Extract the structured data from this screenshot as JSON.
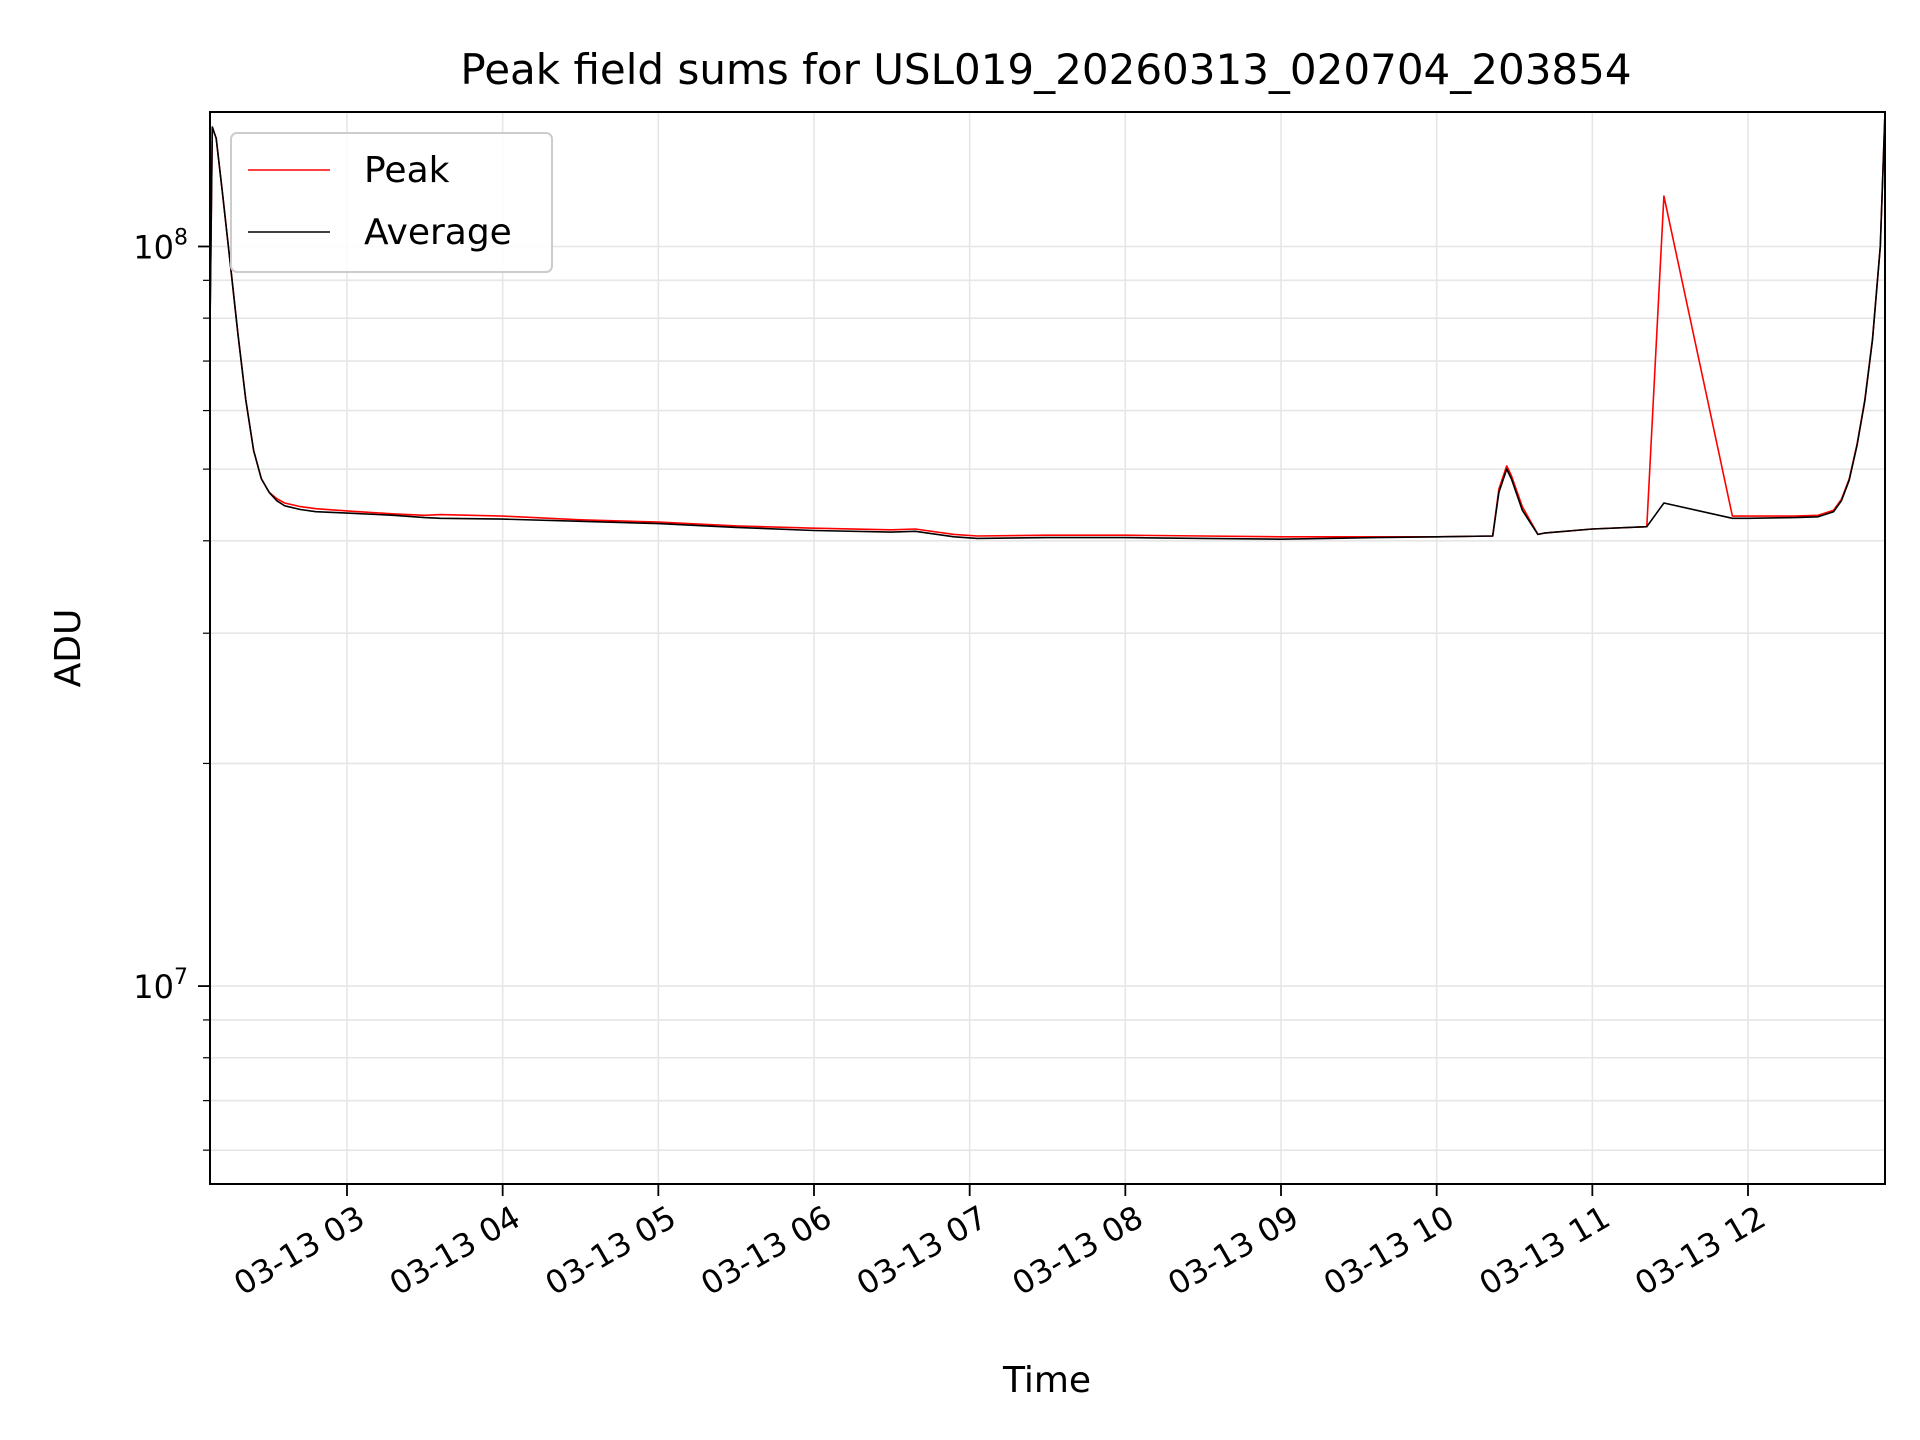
{
  "chart_data": {
    "type": "line",
    "title": "Peak field sums for USL019_20260313_020704_203854",
    "xlabel": "Time",
    "ylabel": "ADU",
    "yscale": "log",
    "ylim": [
      5400000,
      152000000
    ],
    "xlim_hours": [
      2.12,
      12.88
    ],
    "grid": true,
    "legend": {
      "position": "top-left",
      "entries": [
        "Peak",
        "Average"
      ]
    },
    "x_ticks": [
      {
        "hour": 3,
        "label": "03-13 03"
      },
      {
        "hour": 4,
        "label": "03-13 04"
      },
      {
        "hour": 5,
        "label": "03-13 05"
      },
      {
        "hour": 6,
        "label": "03-13 06"
      },
      {
        "hour": 7,
        "label": "03-13 07"
      },
      {
        "hour": 8,
        "label": "03-13 08"
      },
      {
        "hour": 9,
        "label": "03-13 09"
      },
      {
        "hour": 10,
        "label": "03-13 10"
      },
      {
        "hour": 11,
        "label": "03-13 11"
      },
      {
        "hour": 12,
        "label": "03-13 12"
      }
    ],
    "y_ticks": [
      {
        "value": 10000000,
        "base": "10",
        "exp": "7"
      },
      {
        "value": 100000000,
        "base": "10",
        "exp": "8"
      }
    ],
    "series": [
      {
        "name": "Peak",
        "color": "#ff0000",
        "x_hours": [
          2.12,
          2.135,
          2.16,
          2.2,
          2.25,
          2.3,
          2.35,
          2.4,
          2.45,
          2.5,
          2.55,
          2.6,
          2.7,
          2.8,
          3.0,
          3.3,
          3.5,
          3.6,
          4.0,
          4.5,
          5.0,
          5.5,
          6.0,
          6.5,
          6.65,
          6.9,
          7.05,
          7.5,
          8.0,
          8.5,
          9.0,
          9.3,
          9.6,
          10.0,
          10.36,
          10.4,
          10.45,
          10.48,
          10.55,
          10.65,
          10.7,
          11.0,
          11.35,
          11.46,
          11.9,
          12.0,
          12.3,
          12.45,
          12.55,
          12.6,
          12.65,
          12.7,
          12.75,
          12.8,
          12.85,
          12.88
        ],
        "values": [
          78000000,
          145000000,
          140000000,
          118000000,
          95000000,
          76000000,
          62000000,
          53000000,
          48500000,
          46500000,
          45600000,
          45000000,
          44500000,
          44200000,
          43900000,
          43500000,
          43300000,
          43400000,
          43200000,
          42700000,
          42400000,
          41900000,
          41600000,
          41400000,
          41500000,
          40800000,
          40600000,
          40700000,
          40700000,
          40600000,
          40500000,
          40500000,
          40500000,
          40500000,
          40600000,
          47000000,
          50500000,
          49000000,
          44500000,
          40800000,
          41000000,
          41500000,
          41800000,
          117000000,
          43200000,
          43200000,
          43200000,
          43300000,
          44000000,
          45500000,
          48500000,
          54000000,
          62000000,
          75000000,
          100000000,
          152000000
        ]
      },
      {
        "name": "Average",
        "color": "#000000",
        "x_hours": [
          2.12,
          2.135,
          2.16,
          2.2,
          2.25,
          2.3,
          2.35,
          2.4,
          2.45,
          2.5,
          2.55,
          2.6,
          2.7,
          2.8,
          3.0,
          3.3,
          3.5,
          3.6,
          4.0,
          4.5,
          5.0,
          5.5,
          6.0,
          6.5,
          6.65,
          6.9,
          7.05,
          7.5,
          8.0,
          8.5,
          9.0,
          9.3,
          9.6,
          10.0,
          10.36,
          10.4,
          10.45,
          10.48,
          10.55,
          10.65,
          10.7,
          11.0,
          11.35,
          11.46,
          11.9,
          12.0,
          12.3,
          12.45,
          12.55,
          12.6,
          12.65,
          12.7,
          12.75,
          12.8,
          12.85,
          12.88
        ],
        "values": [
          78000000,
          145000000,
          140000000,
          118000000,
          95000000,
          76000000,
          62000000,
          53000000,
          48500000,
          46500000,
          45300000,
          44600000,
          44100000,
          43800000,
          43600000,
          43300000,
          43000000,
          42900000,
          42800000,
          42500000,
          42200000,
          41700000,
          41300000,
          41100000,
          41200000,
          40500000,
          40300000,
          40400000,
          40400000,
          40300000,
          40200000,
          40300000,
          40400000,
          40500000,
          40600000,
          46500000,
          50000000,
          48500000,
          44000000,
          40800000,
          41000000,
          41500000,
          41800000,
          45000000,
          42900000,
          42900000,
          43000000,
          43100000,
          43800000,
          45300000,
          48300000,
          53800000,
          61800000,
          74800000,
          100000000,
          152000000
        ]
      }
    ]
  }
}
